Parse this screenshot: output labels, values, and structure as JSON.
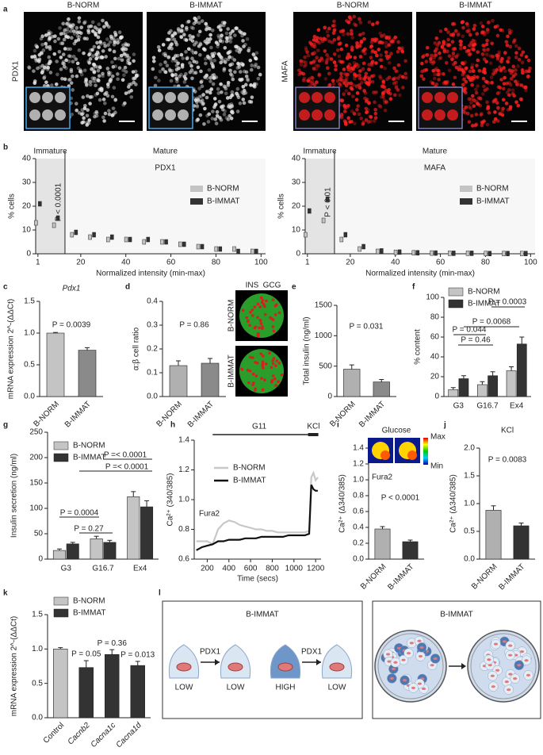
{
  "panels": {
    "a": {
      "label": "a",
      "titles": [
        "B-NORM",
        "B-IMMAT",
        "B-NORM",
        "B-IMMAT"
      ],
      "stains": [
        "PDX1",
        "MAFA"
      ]
    },
    "b": {
      "label": "b",
      "charts": [
        {
          "type": "box",
          "title": "PDX1",
          "title_color": "#a0a0a0",
          "region_labels": [
            "Immature",
            "Mature"
          ],
          "threshold": 13,
          "annotation": "P < 0.0001",
          "xlabel": "Normalized intensity (min-max)",
          "ylabel": "% cells",
          "x": [
            1,
            9,
            17,
            25,
            33,
            41,
            49,
            57,
            65,
            73,
            81,
            89,
            97
          ],
          "series": [
            {
              "name": "B-NORM",
              "color": "#c4c4c4",
              "values": [
                13,
                12,
                8,
                7,
                6,
                6,
                5,
                5,
                4,
                3,
                2,
                2,
                1
              ]
            },
            {
              "name": "B-IMMAT",
              "color": "#333333",
              "values": [
                21,
                15,
                9,
                8,
                7,
                6,
                6,
                5,
                4,
                3,
                2,
                1,
                1
              ]
            }
          ],
          "xlim": [
            0,
            102
          ],
          "ylim": [
            0,
            40
          ],
          "xticks": [
            1,
            20,
            40,
            60,
            80,
            100
          ],
          "yticks": [
            0,
            10,
            20,
            30,
            40
          ]
        },
        {
          "type": "box",
          "title": "MAFA",
          "title_color": "#e8141b",
          "region_labels": [
            "Immature",
            "Mature"
          ],
          "threshold": 13,
          "annotation": "P < 0.01",
          "xlabel": "Normalized intensity (min-max)",
          "ylabel": "% cells",
          "x": [
            1,
            9,
            17,
            25,
            33,
            41,
            49,
            57,
            65,
            73,
            81,
            89,
            97
          ],
          "series": [
            {
              "name": "B-NORM",
              "color": "#c4c4c4",
              "values": [
                8,
                14,
                6,
                2,
                1,
                0.6,
                0.4,
                0.3,
                0.2,
                0.2,
                0.1,
                0.1,
                0.1
              ]
            },
            {
              "name": "B-IMMAT",
              "color": "#333333",
              "values": [
                18,
                23,
                8,
                3,
                1.2,
                0.7,
                0.4,
                0.3,
                0.2,
                0.2,
                0.1,
                0.1,
                0.1
              ]
            }
          ],
          "xlim": [
            0,
            102
          ],
          "ylim": [
            0,
            40
          ],
          "xticks": [
            1,
            20,
            40,
            60,
            80,
            100
          ],
          "yticks": [
            0,
            10,
            20,
            30,
            40
          ]
        }
      ]
    },
    "c": {
      "label": "c",
      "type": "bar",
      "title": "Pdx1",
      "ylabel": "mRNA expression 2^-(ΔΔCt)",
      "categories": [
        "B-NORM",
        "B-IMMAT"
      ],
      "values": [
        1.0,
        0.73
      ],
      "errors": [
        0.01,
        0.04
      ],
      "colors": [
        "#c4c4c4",
        "#8a8a8a"
      ],
      "ylim": [
        0,
        1.5
      ],
      "yticks": [
        {
          "value": 0,
          "label": "0.0"
        },
        0.5,
        {
          "value": 1,
          "label": "1.0"
        },
        1.5
      ],
      "annotations": [
        "P = 0.0039"
      ]
    },
    "d": {
      "label": "d",
      "type": "bar",
      "ylabel": "α:β cell ratio",
      "categories": [
        "B-NORM",
        "B-IMMAT"
      ],
      "values": [
        0.13,
        0.14
      ],
      "errors": [
        0.02,
        0.02
      ],
      "colors": [
        "#b0b0b0",
        "#8a8a8a"
      ],
      "ylim": [
        0,
        0.4
      ],
      "yticks": [
        {
          "value": 0,
          "label": "0.0"
        },
        0.1,
        0.2,
        0.3,
        0.4
      ],
      "annotations": [
        "P = 0.86"
      ],
      "stain_labels": [
        "INS",
        "GCG"
      ],
      "image_labels": [
        "B-NORM",
        "B-IMMAT"
      ]
    },
    "e": {
      "label": "e",
      "type": "bar",
      "ylabel": "Total insulin (ng/ml)",
      "categories": [
        "B-NORM",
        "B-IMMAT"
      ],
      "values": [
        450,
        240
      ],
      "errors": [
        70,
        40
      ],
      "colors": [
        "#b0b0b0",
        "#8a8a8a"
      ],
      "ylim": [
        0,
        1500
      ],
      "yticks": [
        0,
        500,
        1000,
        1500
      ],
      "annotations": [
        "P = 0.031"
      ]
    },
    "f": {
      "label": "f",
      "type": "bar",
      "ylabel": "% content",
      "categories": [
        "G3",
        "G16.7",
        "Ex4"
      ],
      "series": [
        {
          "name": "B-NORM",
          "color": "#c4c4c4",
          "values": [
            7,
            12,
            26
          ],
          "errors": [
            2,
            3,
            4
          ]
        },
        {
          "name": "B-IMMAT",
          "color": "#333333",
          "values": [
            18,
            21,
            53
          ],
          "errors": [
            3,
            4,
            7
          ]
        }
      ],
      "ylim": [
        0,
        100
      ],
      "yticks": [
        0,
        20,
        40,
        60,
        80,
        100
      ],
      "annotations": [
        "P = 0.0003",
        "P = 0.0068",
        "P = 0.044",
        "P = 0.46"
      ]
    },
    "g": {
      "label": "g",
      "type": "bar",
      "ylabel": "Insulin secretion (ng/ml)",
      "categories": [
        "G3",
        "G16.7",
        "Ex4"
      ],
      "series": [
        {
          "name": "B-NORM",
          "color": "#c4c4c4",
          "values": [
            17,
            40,
            123
          ],
          "errors": [
            3,
            5,
            10
          ]
        },
        {
          "name": "B-IMMAT",
          "color": "#333333",
          "values": [
            30,
            33,
            103
          ],
          "errors": [
            3,
            4,
            12
          ]
        }
      ],
      "ylim": [
        0,
        250
      ],
      "yticks": [
        0,
        50,
        100,
        150,
        200,
        250
      ],
      "annotations": [
        "P =< 0.0001",
        "P =< 0.0001",
        "P = 0.0004",
        "P = 0.27"
      ]
    },
    "h": {
      "label": "h",
      "type": "line",
      "ylabel": "Ca²⁺ (340/385)",
      "xlabel": "Time (secs)",
      "annotations": [
        "G11",
        "KCl",
        "Fura2"
      ],
      "x": [
        100,
        150,
        200,
        250,
        300,
        350,
        400,
        450,
        500,
        550,
        600,
        650,
        700,
        750,
        800,
        850,
        900,
        950,
        1000,
        1050,
        1100,
        1140,
        1160,
        1180,
        1200,
        1220
      ],
      "series": [
        {
          "name": "B-NORM",
          "color": "#c8c8c8",
          "values": [
            0.72,
            0.72,
            0.72,
            0.7,
            0.8,
            0.84,
            0.86,
            0.85,
            0.83,
            0.82,
            0.81,
            0.8,
            0.8,
            0.79,
            0.79,
            0.78,
            0.78,
            0.78,
            0.78,
            0.78,
            0.78,
            0.79,
            1.15,
            1.18,
            1.13,
            1.15
          ]
        },
        {
          "name": "B-IMMAT",
          "color": "#111111",
          "values": [
            0.66,
            0.68,
            0.69,
            0.7,
            0.72,
            0.72,
            0.73,
            0.73,
            0.73,
            0.74,
            0.74,
            0.74,
            0.75,
            0.75,
            0.75,
            0.75,
            0.75,
            0.76,
            0.76,
            0.76,
            0.76,
            0.77,
            1.1,
            1.07,
            1.06,
            1.06
          ]
        }
      ],
      "xlim": [
        80,
        1250
      ],
      "ylim": [
        0.6,
        1.4
      ],
      "xticks": [
        200,
        400,
        600,
        800,
        1000,
        1200
      ],
      "yticks": [
        0.6,
        0.8,
        {
          "value": 1,
          "label": "1.0"
        },
        1.2,
        1.4
      ]
    },
    "i": {
      "label": "i",
      "type": "bar",
      "title": "Glucose",
      "ylabel": "Ca²⁺ (Δ340/385)",
      "categories": [
        "B-NORM",
        "B-IMMAT"
      ],
      "values": [
        0.38,
        0.22
      ],
      "errors": [
        0.03,
        0.02
      ],
      "colors": [
        "#b0b0b0",
        "#333333"
      ],
      "ylim": [
        0,
        1.4
      ],
      "yticks": [
        {
          "value": 0,
          "label": "0.0"
        },
        0.2,
        0.4,
        0.6,
        0.8,
        {
          "value": 1,
          "label": "1.0"
        },
        1.2,
        1.4
      ],
      "annotations": [
        "P < 0.0001",
        "Fura2"
      ],
      "scale_labels": [
        "Max",
        "Min"
      ]
    },
    "j": {
      "label": "j",
      "type": "bar",
      "title": "KCl",
      "ylabel": "Ca²⁺ (Δ340/385)",
      "categories": [
        "B-NORM",
        "B-IMMAT"
      ],
      "values": [
        0.88,
        0.6
      ],
      "errors": [
        0.08,
        0.05
      ],
      "colors": [
        "#b0b0b0",
        "#333333"
      ],
      "ylim": [
        0,
        2
      ],
      "yticks": [
        {
          "value": 0,
          "label": "0.0"
        },
        0.5,
        {
          "value": 1,
          "label": "1.0"
        },
        1.5,
        {
          "value": 2,
          "label": "2.0"
        }
      ],
      "annotations": [
        "P = 0.0083"
      ]
    },
    "k": {
      "label": "k",
      "type": "bar",
      "ylabel": "mRNA expression 2^-(ΔΔCt)",
      "categories": [
        "Control",
        "Cacnb2",
        "Cacna1c",
        "Cacna1d"
      ],
      "values": [
        1.0,
        0.73,
        0.92,
        0.76
      ],
      "errors": [
        0.02,
        0.1,
        0.07,
        0.06
      ],
      "colors": [
        "#c4c4c4",
        "#333333",
        "#333333",
        "#333333"
      ],
      "legend": [
        {
          "name": "B-NORM",
          "color": "#c4c4c4"
        },
        {
          "name": "B-IMMAT",
          "color": "#333333"
        }
      ],
      "ylim": [
        0,
        1.5
      ],
      "yticks": [
        {
          "value": 0,
          "label": "0.0"
        },
        0.5,
        {
          "value": 1,
          "label": "1.0"
        },
        1.5
      ],
      "annotations": [
        "P = 0.05",
        "P = 0.36",
        "P = 0.013"
      ]
    },
    "l": {
      "label": "l",
      "left_title": "B-IMMAT",
      "arrow_labels": [
        "PDX1",
        "PDX1"
      ],
      "cell_labels": [
        "LOW",
        "LOW",
        "HIGH",
        "LOW"
      ],
      "right_title": "B-IMMAT"
    }
  }
}
